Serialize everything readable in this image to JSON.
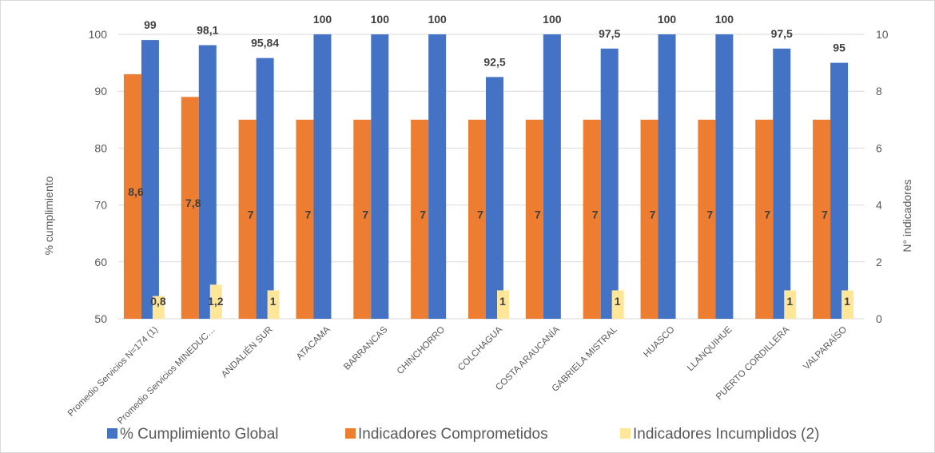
{
  "chart_data": {
    "type": "bar",
    "title": "",
    "categories": [
      "Promedio Servicios N=174 (1)",
      "Promedio Servicios MINEDUC…",
      "ANDALIÉN SUR",
      "ATACAMA",
      "BARRANCAS",
      "CHINCHORRO",
      "COLCHAGUA",
      "COSTA ARAUCANÍA",
      "GABRIELA MISTRAL",
      "HUASCO",
      "LLANQUIHUE",
      "PUERTO CORDILLERA",
      "VALPARAÍSO"
    ],
    "ylabel_left": "% cumplimiento",
    "ylabel_right": "N° indicadores",
    "ylim_left": [
      50,
      100
    ],
    "ylim_right": [
      0,
      10
    ],
    "yticks_left": [
      "50",
      "60",
      "70",
      "80",
      "90",
      "100"
    ],
    "yticks_right": [
      "0",
      "2",
      "4",
      "6",
      "8",
      "10"
    ],
    "grid": true,
    "legend_position": "bottom",
    "series": [
      {
        "name": "% Cumplimiento Global",
        "axis": "left",
        "color": "#4472c4",
        "values": [
          99,
          98.1,
          95.84,
          100,
          100,
          100,
          92.5,
          100,
          97.5,
          100,
          100,
          97.5,
          95
        ],
        "labels": [
          "99",
          "98,1",
          "95,84",
          "100",
          "100",
          "100",
          "92,5",
          "100",
          "97,5",
          "100",
          "100",
          "97,5",
          "95"
        ]
      },
      {
        "name": "Indicadores Comprometidos",
        "axis": "right",
        "color": "#ed7d31",
        "values": [
          8.6,
          7.8,
          7,
          7,
          7,
          7,
          7,
          7,
          7,
          7,
          7,
          7,
          7
        ],
        "labels": [
          "8,6",
          "7,8",
          "7",
          "7",
          "7",
          "7",
          "7",
          "7",
          "7",
          "7",
          "7",
          "7",
          "7"
        ]
      },
      {
        "name": "Indicadores Incumplidos (2)",
        "axis": "right",
        "color": "#ffe699",
        "values": [
          0.8,
          1.2,
          1,
          null,
          null,
          null,
          1,
          null,
          1,
          null,
          null,
          1,
          1
        ],
        "labels": [
          "0,8",
          "1,2",
          "1",
          "",
          "",
          "",
          "1",
          "",
          "1",
          "",
          "",
          "1",
          "1"
        ]
      }
    ]
  }
}
